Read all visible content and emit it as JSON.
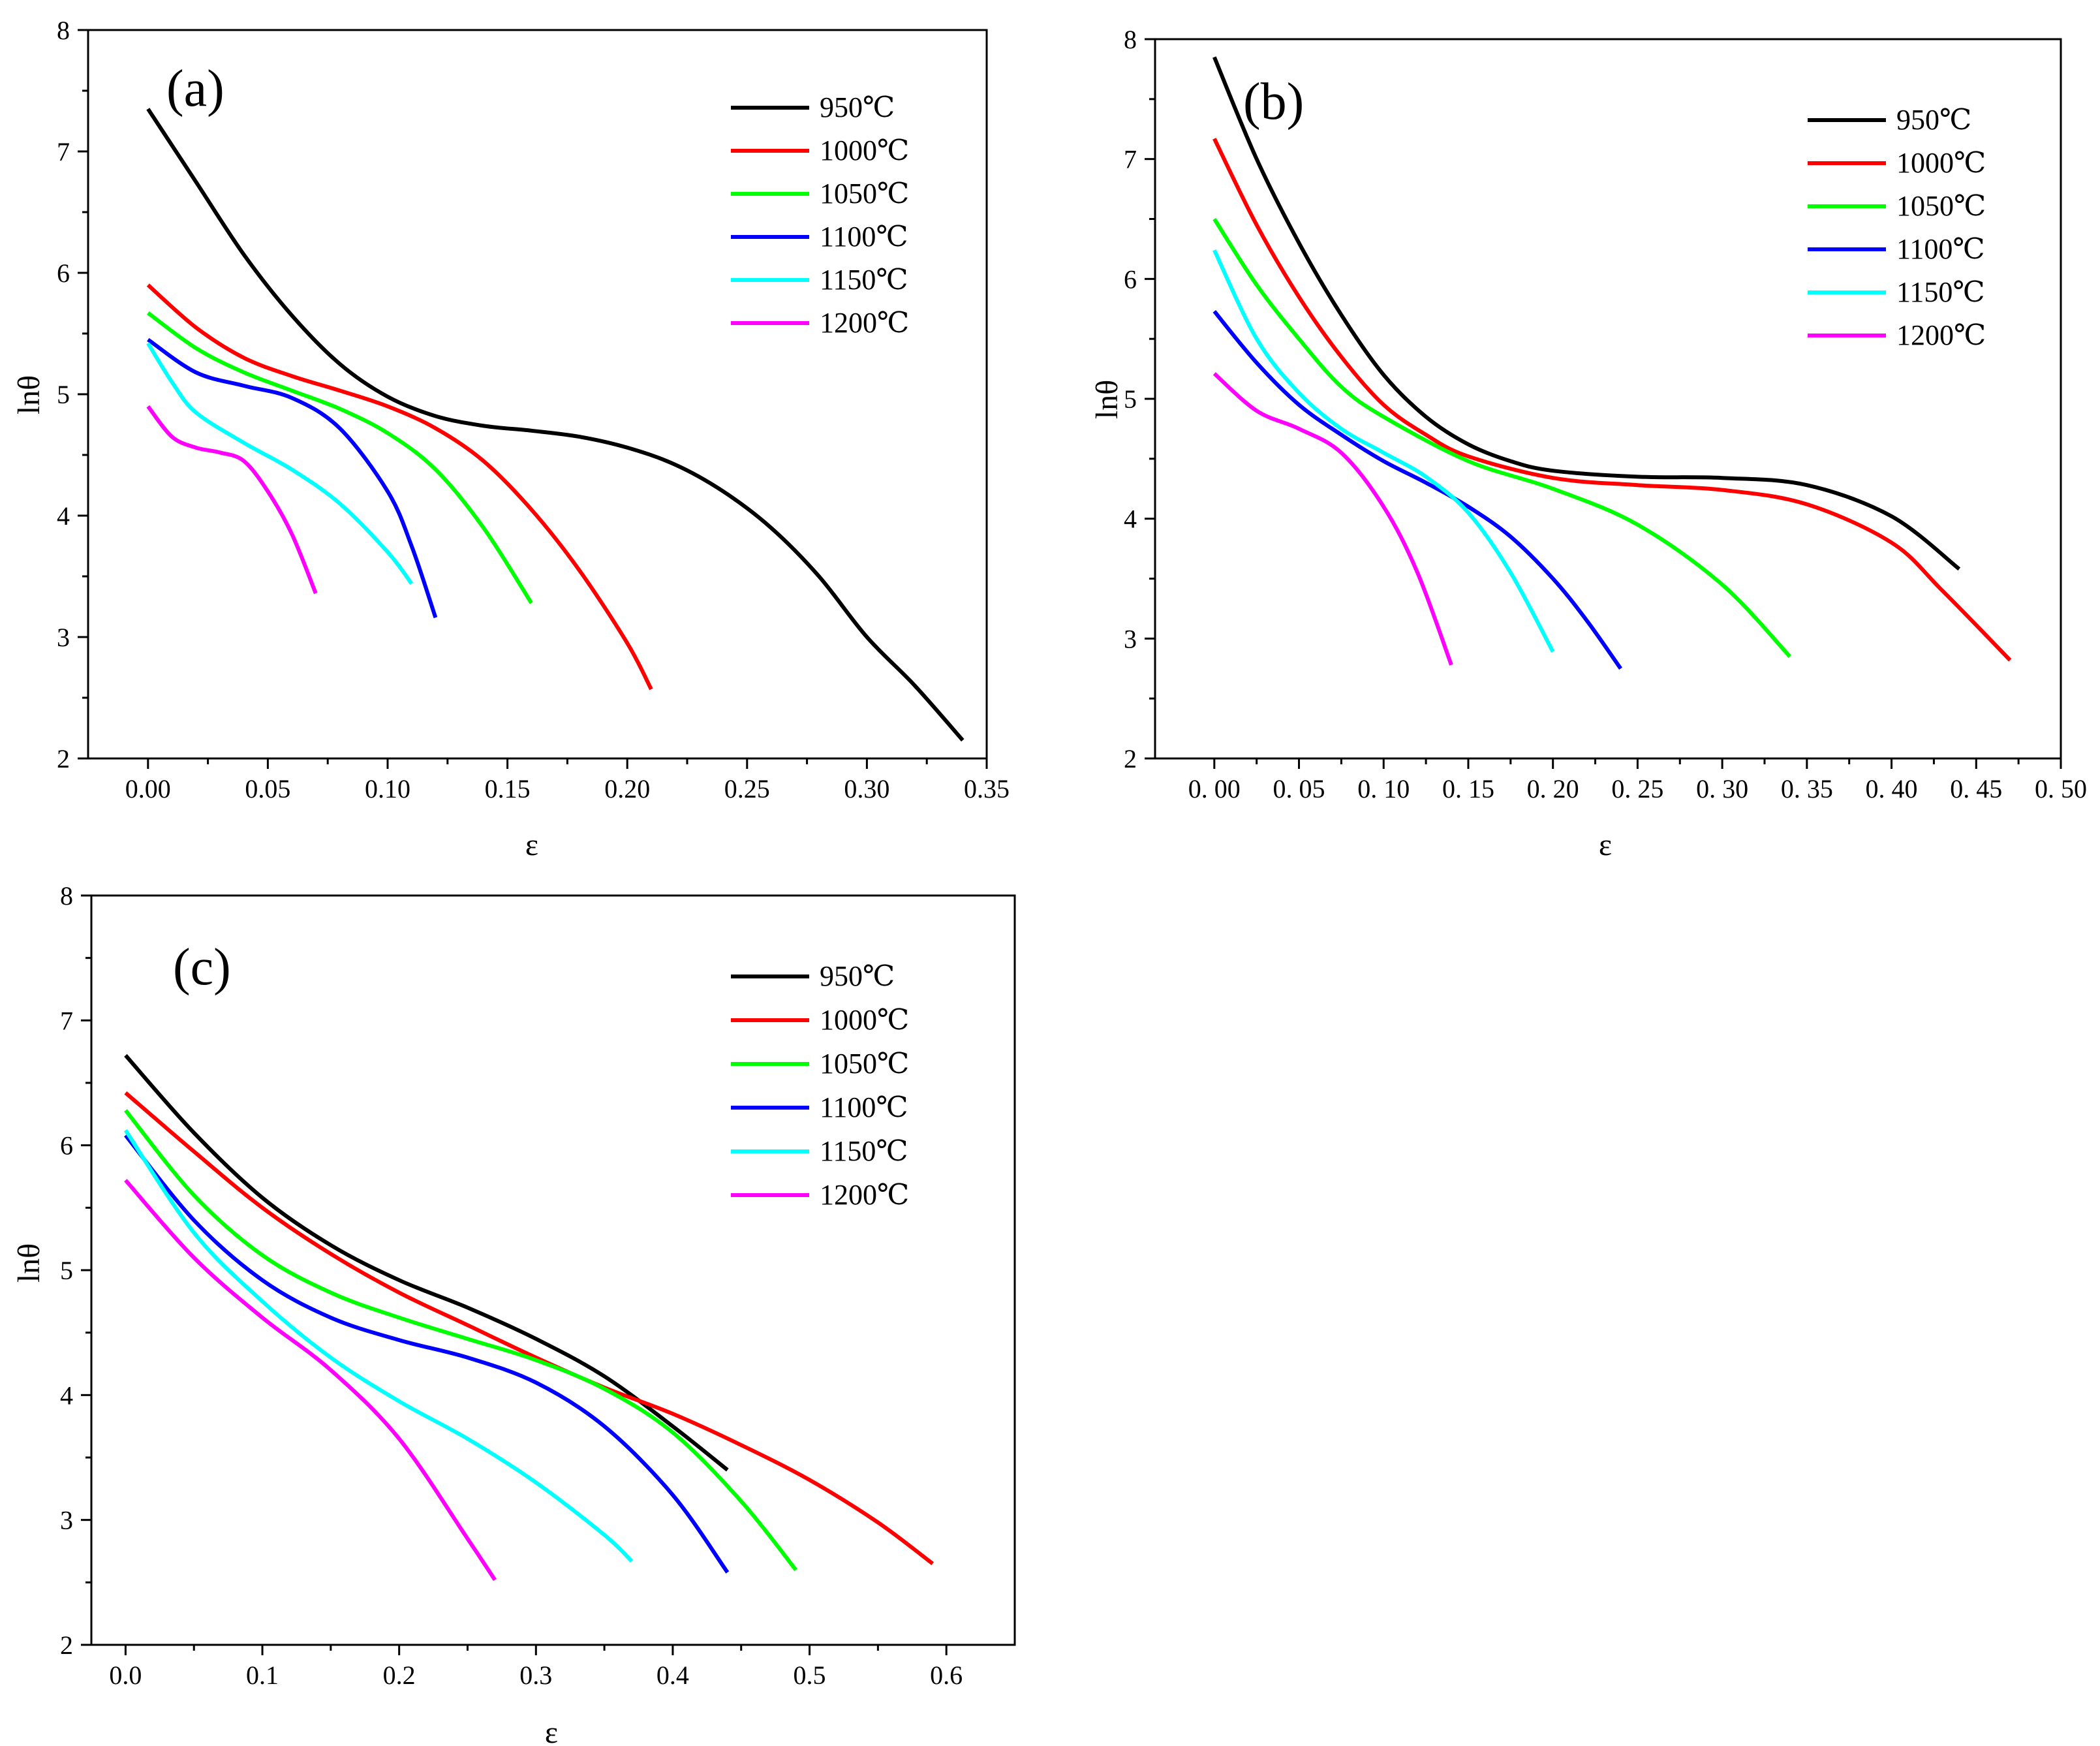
{
  "figure": {
    "legend_items": [
      {
        "label": "950℃",
        "color": "#000000"
      },
      {
        "label": "1000℃",
        "color": "#ff0000"
      },
      {
        "label": "1050℃",
        "color": "#00ff00"
      },
      {
        "label": "1100℃",
        "color": "#0000ff"
      },
      {
        "label": "1150℃",
        "color": "#00ffff"
      },
      {
        "label": "1200℃",
        "color": "#ff00ff"
      }
    ]
  },
  "chart_data": [
    {
      "type": "line",
      "panel": "(a)",
      "xlabel": "ε",
      "ylabel": "lnθ",
      "xlim": [
        -0.025,
        0.35
      ],
      "ylim": [
        2,
        8
      ],
      "xticks": [
        0.0,
        0.05,
        0.1,
        0.15,
        0.2,
        0.25,
        0.3,
        0.35
      ],
      "xtick_labels": [
        "0.00",
        "0.05",
        "0.10",
        "0.15",
        "0.20",
        "0.25",
        "0.30",
        "0.35"
      ],
      "yticks": [
        2,
        3,
        4,
        5,
        6,
        7,
        8
      ],
      "ytick_labels": [
        "2",
        "3",
        "4",
        "5",
        "6",
        "7",
        "8"
      ],
      "legend_position": "top-right",
      "series": [
        {
          "name": "950℃",
          "color": "#000000",
          "x": [
            0,
            0.02,
            0.04,
            0.06,
            0.08,
            0.1,
            0.12,
            0.14,
            0.16,
            0.18,
            0.2,
            0.22,
            0.24,
            0.26,
            0.28,
            0.3,
            0.32,
            0.34
          ],
          "y": [
            7.35,
            6.75,
            6.15,
            5.65,
            5.25,
            4.98,
            4.82,
            4.74,
            4.7,
            4.65,
            4.56,
            4.42,
            4.2,
            3.9,
            3.5,
            3.0,
            2.6,
            2.15
          ]
        },
        {
          "name": "1000℃",
          "color": "#ff0000",
          "x": [
            0,
            0.02,
            0.04,
            0.06,
            0.08,
            0.1,
            0.12,
            0.14,
            0.16,
            0.18,
            0.2,
            0.21
          ],
          "y": [
            5.9,
            5.55,
            5.3,
            5.15,
            5.03,
            4.9,
            4.72,
            4.45,
            4.05,
            3.55,
            2.95,
            2.57
          ]
        },
        {
          "name": "1050℃",
          "color": "#00ff00",
          "x": [
            0,
            0.02,
            0.04,
            0.06,
            0.08,
            0.1,
            0.12,
            0.14,
            0.16
          ],
          "y": [
            5.67,
            5.38,
            5.18,
            5.03,
            4.88,
            4.68,
            4.38,
            3.9,
            3.28
          ]
        },
        {
          "name": "1100℃",
          "color": "#0000ff",
          "x": [
            0,
            0.02,
            0.04,
            0.06,
            0.08,
            0.1,
            0.11,
            0.12
          ],
          "y": [
            5.45,
            5.18,
            5.07,
            4.97,
            4.72,
            4.2,
            3.75,
            3.16
          ]
        },
        {
          "name": "1150℃",
          "color": "#00ffff",
          "x": [
            0,
            0.01,
            0.02,
            0.04,
            0.06,
            0.08,
            0.1,
            0.11
          ],
          "y": [
            5.42,
            5.1,
            4.85,
            4.6,
            4.38,
            4.1,
            3.7,
            3.44
          ]
        },
        {
          "name": "1200℃",
          "color": "#ff00ff",
          "x": [
            0,
            0.01,
            0.02,
            0.03,
            0.04,
            0.05,
            0.06,
            0.07
          ],
          "y": [
            4.9,
            4.65,
            4.56,
            4.52,
            4.45,
            4.2,
            3.85,
            3.36
          ]
        }
      ]
    },
    {
      "type": "line",
      "panel": "(b)",
      "xlabel": "ε",
      "ylabel": "lnθ",
      "xlim": [
        -0.035,
        0.5
      ],
      "ylim": [
        2,
        8
      ],
      "xticks": [
        0.0,
        0.05,
        0.1,
        0.15,
        0.2,
        0.25,
        0.3,
        0.35,
        0.4,
        0.45,
        0.5
      ],
      "xtick_labels": [
        "0. 00",
        "0. 05",
        "0. 10",
        "0. 15",
        "0. 20",
        "0. 25",
        "0. 30",
        "0. 35",
        "0. 40",
        "0. 45",
        "0. 50"
      ],
      "yticks": [
        2,
        3,
        4,
        5,
        6,
        7,
        8
      ],
      "ytick_labels": [
        "2",
        "3",
        "4",
        "5",
        "6",
        "7",
        "8"
      ],
      "legend_position": "top-right",
      "series": [
        {
          "name": "950℃",
          "color": "#000000",
          "x": [
            0,
            0.025,
            0.05,
            0.075,
            0.1,
            0.125,
            0.15,
            0.175,
            0.2,
            0.25,
            0.3,
            0.35,
            0.4,
            0.44
          ],
          "y": [
            7.85,
            7.0,
            6.3,
            5.7,
            5.2,
            4.85,
            4.62,
            4.48,
            4.4,
            4.35,
            4.34,
            4.28,
            4.02,
            3.58
          ]
        },
        {
          "name": "1000℃",
          "color": "#ff0000",
          "x": [
            0,
            0.025,
            0.05,
            0.075,
            0.1,
            0.125,
            0.15,
            0.2,
            0.25,
            0.3,
            0.35,
            0.4,
            0.43,
            0.47
          ],
          "y": [
            7.17,
            6.45,
            5.85,
            5.35,
            4.95,
            4.7,
            4.52,
            4.34,
            4.28,
            4.24,
            4.12,
            3.8,
            3.4,
            2.82
          ]
        },
        {
          "name": "1050℃",
          "color": "#00ff00",
          "x": [
            0,
            0.025,
            0.05,
            0.075,
            0.1,
            0.15,
            0.2,
            0.25,
            0.3,
            0.34
          ],
          "y": [
            6.5,
            5.95,
            5.5,
            5.1,
            4.85,
            4.48,
            4.25,
            3.95,
            3.45,
            2.85
          ]
        },
        {
          "name": "1100℃",
          "color": "#0000ff",
          "x": [
            0,
            0.025,
            0.05,
            0.075,
            0.1,
            0.125,
            0.15,
            0.175,
            0.2,
            0.22,
            0.24
          ],
          "y": [
            5.73,
            5.3,
            4.95,
            4.7,
            4.48,
            4.3,
            4.1,
            3.85,
            3.5,
            3.15,
            2.75
          ]
        },
        {
          "name": "1150℃",
          "color": "#00ffff",
          "x": [
            0,
            0.025,
            0.05,
            0.075,
            0.1,
            0.125,
            0.15,
            0.175,
            0.2
          ],
          "y": [
            6.24,
            5.5,
            5.05,
            4.75,
            4.55,
            4.35,
            4.05,
            3.55,
            2.89
          ]
        },
        {
          "name": "1200℃",
          "color": "#ff00ff",
          "x": [
            0,
            0.025,
            0.05,
            0.075,
            0.1,
            0.12,
            0.14
          ],
          "y": [
            5.21,
            4.9,
            4.75,
            4.55,
            4.1,
            3.55,
            2.78
          ]
        }
      ]
    },
    {
      "type": "line",
      "panel": "(c)",
      "xlabel": "ε",
      "ylabel": "lnθ",
      "xlim": [
        -0.025,
        0.65
      ],
      "ylim": [
        2,
        8
      ],
      "xticks": [
        0.0,
        0.1,
        0.2,
        0.3,
        0.4,
        0.5,
        0.6
      ],
      "xtick_labels": [
        "0.0",
        "0.1",
        "0.2",
        "0.3",
        "0.4",
        "0.5",
        "0.6"
      ],
      "yticks": [
        2,
        3,
        4,
        5,
        6,
        7,
        8
      ],
      "ytick_labels": [
        "2",
        "3",
        "4",
        "5",
        "6",
        "7",
        "8"
      ],
      "legend_position": "top-right",
      "series": [
        {
          "name": "950℃",
          "color": "#000000",
          "x": [
            0,
            0.05,
            0.1,
            0.15,
            0.2,
            0.25,
            0.3,
            0.35,
            0.4,
            0.44
          ],
          "y": [
            6.72,
            6.1,
            5.58,
            5.2,
            4.92,
            4.7,
            4.45,
            4.15,
            3.75,
            3.4
          ]
        },
        {
          "name": "1000℃",
          "color": "#ff0000",
          "x": [
            0,
            0.05,
            0.1,
            0.15,
            0.2,
            0.25,
            0.3,
            0.35,
            0.4,
            0.45,
            0.5,
            0.55,
            0.59
          ],
          "y": [
            6.42,
            5.95,
            5.5,
            5.13,
            4.82,
            4.56,
            4.3,
            4.06,
            3.85,
            3.6,
            3.32,
            2.98,
            2.65
          ]
        },
        {
          "name": "1050℃",
          "color": "#00ff00",
          "x": [
            0,
            0.05,
            0.1,
            0.15,
            0.2,
            0.25,
            0.3,
            0.35,
            0.4,
            0.45,
            0.49
          ],
          "y": [
            6.28,
            5.6,
            5.12,
            4.82,
            4.62,
            4.45,
            4.28,
            4.05,
            3.7,
            3.15,
            2.6
          ]
        },
        {
          "name": "1100℃",
          "color": "#0000ff",
          "x": [
            0,
            0.05,
            0.1,
            0.15,
            0.2,
            0.25,
            0.3,
            0.35,
            0.4,
            0.44
          ],
          "y": [
            6.08,
            5.4,
            4.92,
            4.62,
            4.44,
            4.3,
            4.1,
            3.75,
            3.2,
            2.58
          ]
        },
        {
          "name": "1150℃",
          "color": "#00ffff",
          "x": [
            0,
            0.05,
            0.1,
            0.15,
            0.2,
            0.25,
            0.3,
            0.35,
            0.37
          ],
          "y": [
            6.12,
            5.3,
            4.75,
            4.3,
            3.95,
            3.65,
            3.3,
            2.88,
            2.67
          ]
        },
        {
          "name": "1200℃",
          "color": "#ff00ff",
          "x": [
            0,
            0.05,
            0.1,
            0.15,
            0.2,
            0.25,
            0.27
          ],
          "y": [
            5.72,
            5.1,
            4.62,
            4.2,
            3.65,
            2.85,
            2.52
          ]
        }
      ]
    }
  ]
}
